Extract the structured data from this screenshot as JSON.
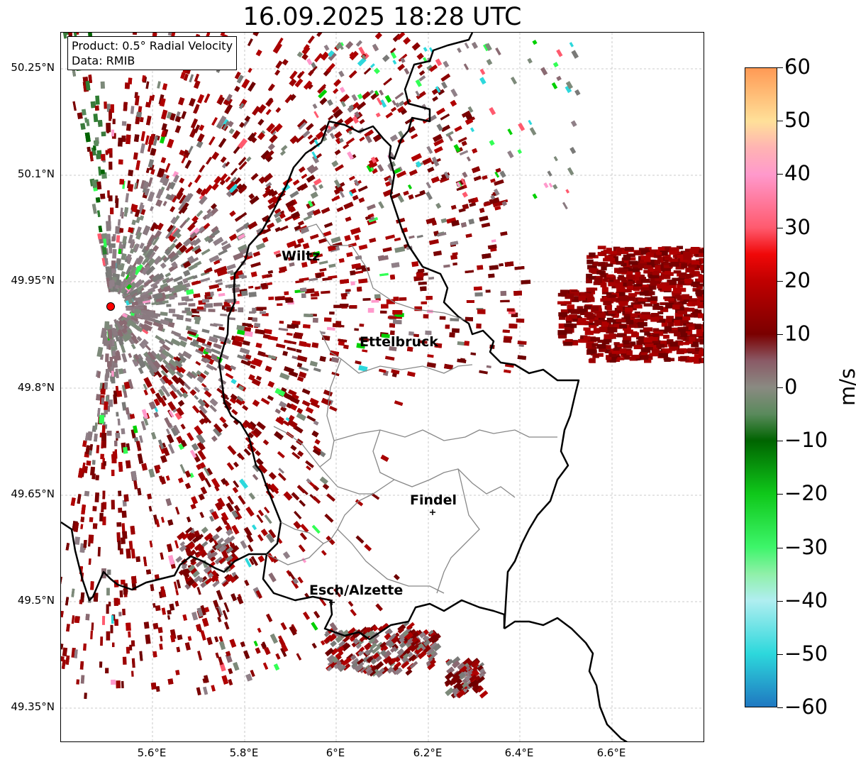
{
  "title": "16.09.2025 18:28 UTC",
  "info_box": {
    "product_line": "Product: 0.5° Radial Velocity",
    "data_line": "Data: RMIB"
  },
  "latitude_labels": [
    "50.25°N",
    "50.1°N",
    "49.95°N",
    "49.8°N",
    "49.65°N",
    "49.5°N",
    "49.35°N"
  ],
  "longitude_labels": [
    "5.6°E",
    "5.8°E",
    "6°E",
    "6.2°E",
    "6.4°E",
    "6.6°E"
  ],
  "cities": [
    {
      "name": "Wiltz",
      "marker": false
    },
    {
      "name": "Ettelbruck",
      "marker": false
    },
    {
      "name": "Findel",
      "marker": true
    },
    {
      "name": "Esch/Alzette",
      "marker": true
    }
  ],
  "colorbar": {
    "unit": "m/s",
    "tick_labels": [
      "60",
      "50",
      "40",
      "30",
      "20",
      "10",
      "0",
      "−10",
      "−20",
      "−30",
      "−40",
      "−50",
      "−60"
    ],
    "range": [
      -60,
      60
    ],
    "color_stops": [
      {
        "value": -60,
        "color": "#1f78c1"
      },
      {
        "value": -50,
        "color": "#2dd8dc"
      },
      {
        "value": -40,
        "color": "#b0eef0"
      },
      {
        "value": -35,
        "color": "#8ff0a8"
      },
      {
        "value": -30,
        "color": "#3df56a"
      },
      {
        "value": -20,
        "color": "#0fc81a"
      },
      {
        "value": -10,
        "color": "#006400"
      },
      {
        "value": -5,
        "color": "#5a8a5c"
      },
      {
        "value": 0,
        "color": "#8a8a82"
      },
      {
        "value": 5,
        "color": "#8a5a66"
      },
      {
        "value": 10,
        "color": "#7a0000"
      },
      {
        "value": 20,
        "color": "#c00000"
      },
      {
        "value": 25,
        "color": "#f00808"
      },
      {
        "value": 30,
        "color": "#ff5a6e"
      },
      {
        "value": 40,
        "color": "#ff99cc"
      },
      {
        "value": 45,
        "color": "#ffb3b3"
      },
      {
        "value": 50,
        "color": "#ffe099"
      },
      {
        "value": 60,
        "color": "#ff9a55"
      }
    ]
  },
  "radar_site_color": "#ff0000"
}
